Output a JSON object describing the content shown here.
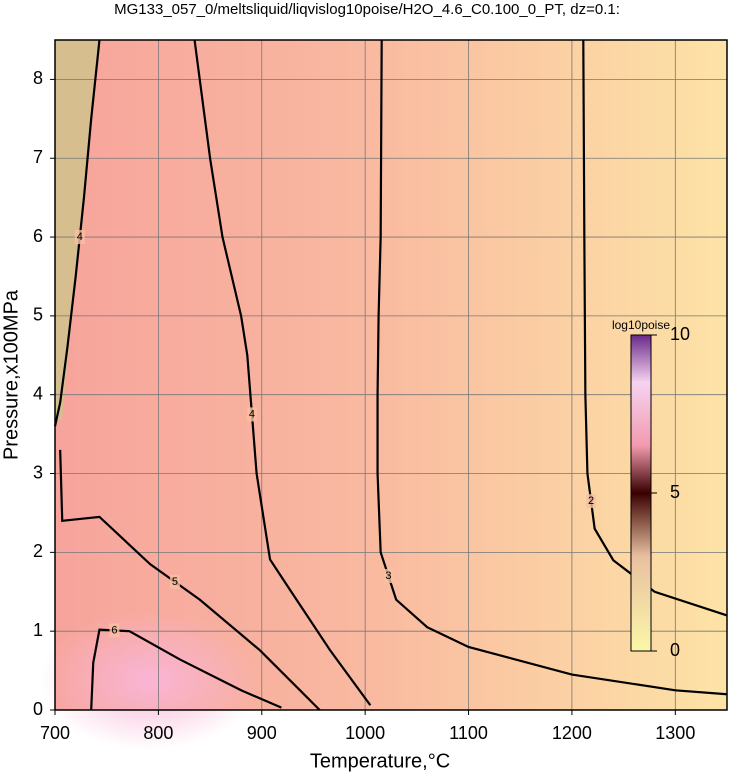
{
  "chart_data": {
    "type": "contour",
    "title": "MG133_057_0/meltsliquid/liqvislog10poise/H2O_4.6_C0.100_0_PT, dz=0.1:",
    "x_label": "Temperature,°C",
    "y_label": "Pressure,x100MPa",
    "xlim": [
      700,
      1350
    ],
    "ylim": [
      0,
      8.5
    ],
    "xticks": [
      700,
      800,
      900,
      1000,
      1100,
      1200,
      1300
    ],
    "yticks": [
      0,
      1,
      2,
      3,
      4,
      5,
      6,
      7,
      8
    ],
    "grid": true,
    "contours": [
      {
        "level": 2,
        "x": [
          1211,
          1212,
          1213,
          1215,
          1222,
          1240,
          1280,
          1350
        ],
        "y": [
          8.5,
          6,
          4,
          3,
          2.3,
          1.9,
          1.5,
          1.2
        ]
      },
      {
        "level": 3,
        "x": [
          1016,
          1015,
          1013,
          1012,
          1012,
          1015,
          1030,
          1060,
          1100,
          1200,
          1300,
          1350
        ],
        "y": [
          8.5,
          6,
          5,
          4,
          3,
          2,
          1.4,
          1.05,
          0.8,
          0.45,
          0.25,
          0.2
        ]
      },
      {
        "level": 4,
        "x": [
          835,
          850,
          862,
          880,
          886,
          895,
          908,
          927,
          966,
          1005
        ],
        "y": [
          8.5,
          7,
          6,
          5,
          4.5,
          3,
          1.91,
          1.53,
          0.76,
          0.06
        ]
      },
      {
        "level": 4,
        "x": [
          743,
          735,
          728,
          720,
          712,
          705,
          700
        ],
        "y": [
          8.5,
          7.5,
          6.5,
          5.5,
          4.6,
          3.9,
          3.6
        ]
      },
      {
        "level": 5,
        "x": [
          705,
          707,
          743,
          792,
          840,
          898,
          937,
          956
        ],
        "y": [
          3.3,
          2.4,
          2.45,
          1.85,
          1.4,
          0.76,
          0.25,
          0
        ]
      },
      {
        "level": 6,
        "x": [
          735,
          737,
          743,
          772,
          821,
          880,
          919
        ],
        "y": [
          0,
          0.6,
          1.02,
          1.0,
          0.64,
          0.25,
          0.03
        ]
      }
    ],
    "colorbar": {
      "label": "log10poise",
      "lim": [
        0,
        10
      ],
      "ticks": [
        0,
        5,
        10
      ]
    }
  }
}
